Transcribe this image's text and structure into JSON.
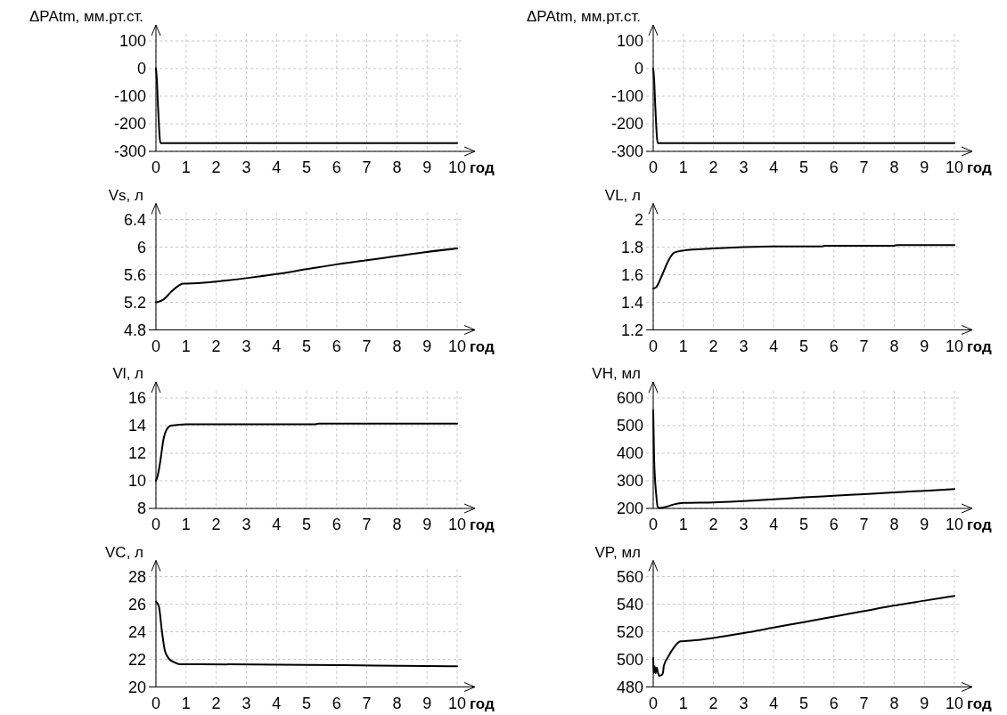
{
  "chart_data": [
    {
      "type": "line",
      "ylabel": "ΔPAtm, мм.рт.ст.",
      "xlabel": "год",
      "xlim": [
        0,
        10
      ],
      "xticks": [
        0,
        1,
        2,
        3,
        4,
        5,
        6,
        7,
        8,
        9,
        10
      ],
      "ylim": [
        -300,
        100
      ],
      "yticks": [
        -300,
        -200,
        -100,
        0,
        100
      ],
      "grid": true,
      "series": [
        {
          "color": "#000000",
          "x": [
            0,
            0.03,
            0.07,
            0.15,
            1,
            2,
            3,
            4,
            5,
            6,
            7,
            8,
            9,
            10
          ],
          "values": [
            0,
            -40,
            -140,
            -270,
            -270,
            -270,
            -270,
            -270,
            -270,
            -270,
            -270,
            -270,
            -270,
            -270
          ]
        }
      ]
    },
    {
      "type": "line",
      "ylabel": "ΔPAtm, мм.рт.ст.",
      "xlabel": "год",
      "xlim": [
        0,
        10
      ],
      "xticks": [
        0,
        1,
        2,
        3,
        4,
        5,
        6,
        7,
        8,
        9,
        10
      ],
      "ylim": [
        -300,
        100
      ],
      "yticks": [
        -300,
        -200,
        -100,
        0,
        100
      ],
      "grid": true,
      "series": [
        {
          "color": "#000000",
          "x": [
            0,
            0.03,
            0.07,
            0.15,
            1,
            2,
            3,
            4,
            5,
            6,
            7,
            8,
            9,
            10
          ],
          "values": [
            0,
            -40,
            -140,
            -270,
            -270,
            -270,
            -270,
            -270,
            -270,
            -270,
            -270,
            -270,
            -270,
            -270
          ]
        }
      ]
    },
    {
      "type": "line",
      "ylabel": "Vs, л",
      "xlabel": "год",
      "xlim": [
        0,
        10
      ],
      "xticks": [
        0,
        1,
        2,
        3,
        4,
        5,
        6,
        7,
        8,
        9,
        10
      ],
      "ylim": [
        4.8,
        6.4
      ],
      "yticks": [
        4.8,
        5.2,
        5.6,
        6,
        6.4
      ],
      "grid": true,
      "series": [
        {
          "color": "#000000",
          "x": [
            0,
            0.1,
            0.25,
            0.5,
            0.75,
            0.9,
            1.5,
            2,
            3,
            4,
            5,
            6,
            7,
            8,
            9,
            10
          ],
          "values": [
            5.2,
            5.21,
            5.24,
            5.35,
            5.44,
            5.47,
            5.48,
            5.5,
            5.55,
            5.61,
            5.68,
            5.75,
            5.81,
            5.87,
            5.93,
            5.98
          ]
        }
      ]
    },
    {
      "type": "line",
      "ylabel": "VL, л",
      "xlabel": "год",
      "xlim": [
        0,
        10
      ],
      "xticks": [
        0,
        1,
        2,
        3,
        4,
        5,
        6,
        7,
        8,
        9,
        10
      ],
      "ylim": [
        1.2,
        2
      ],
      "yticks": [
        1.2,
        1.4,
        1.6,
        1.8,
        2
      ],
      "grid": true,
      "series": [
        {
          "color": "#000000",
          "x": [
            0,
            0.1,
            0.3,
            0.5,
            0.7,
            1,
            2,
            3,
            4,
            5.6,
            5.7,
            8,
            8.1,
            10
          ],
          "values": [
            1.5,
            1.51,
            1.6,
            1.7,
            1.76,
            1.775,
            1.79,
            1.8,
            1.805,
            1.805,
            1.81,
            1.81,
            1.815,
            1.815
          ]
        }
      ]
    },
    {
      "type": "line",
      "ylabel": "Vl, л",
      "xlabel": "год",
      "xlim": [
        0,
        10
      ],
      "xticks": [
        0,
        1,
        2,
        3,
        4,
        5,
        6,
        7,
        8,
        9,
        10
      ],
      "ylim": [
        8,
        16
      ],
      "yticks": [
        8,
        10,
        12,
        14,
        16
      ],
      "grid": true,
      "series": [
        {
          "color": "#000000",
          "x": [
            0,
            0.05,
            0.15,
            0.25,
            0.35,
            0.5,
            0.7,
            1,
            5.3,
            5.4,
            10
          ],
          "values": [
            10,
            10.3,
            11.5,
            13,
            13.7,
            14,
            14.05,
            14.1,
            14.1,
            14.15,
            14.15
          ]
        }
      ]
    },
    {
      "type": "line",
      "ylabel": "VH, мл",
      "xlabel": "год",
      "xlim": [
        0,
        10
      ],
      "xticks": [
        0,
        1,
        2,
        3,
        4,
        5,
        6,
        7,
        8,
        9,
        10
      ],
      "ylim": [
        200,
        600
      ],
      "yticks": [
        200,
        300,
        400,
        500,
        600
      ],
      "grid": true,
      "series": [
        {
          "color": "#000000",
          "x": [
            0,
            0.03,
            0.1,
            0.15,
            0.2,
            0.4,
            0.7,
            1,
            2,
            3,
            4,
            5,
            6,
            7,
            8,
            9,
            10
          ],
          "values": [
            555,
            380,
            250,
            205,
            202,
            205,
            215,
            220,
            222,
            227,
            233,
            240,
            246,
            252,
            258,
            264,
            270
          ]
        }
      ]
    },
    {
      "type": "line",
      "ylabel": "VC, л",
      "xlabel": "год",
      "xlim": [
        0,
        10
      ],
      "xticks": [
        0,
        1,
        2,
        3,
        4,
        5,
        6,
        7,
        8,
        9,
        10
      ],
      "ylim": [
        20,
        28
      ],
      "yticks": [
        20,
        22,
        24,
        26,
        28
      ],
      "grid": true,
      "series": [
        {
          "color": "#000000",
          "x": [
            0,
            0.1,
            0.2,
            0.3,
            0.45,
            0.6,
            0.8,
            1,
            5,
            7.3,
            10
          ],
          "values": [
            26.2,
            25.8,
            24,
            22.6,
            22,
            21.8,
            21.65,
            21.65,
            21.6,
            21.55,
            21.5
          ]
        }
      ]
    },
    {
      "type": "line",
      "ylabel": "VP, мл",
      "xlabel": "год",
      "xlim": [
        0,
        10
      ],
      "xticks": [
        0,
        1,
        2,
        3,
        4,
        5,
        6,
        7,
        8,
        9,
        10
      ],
      "ylim": [
        480,
        560
      ],
      "yticks": [
        480,
        500,
        520,
        540,
        560
      ],
      "grid": true,
      "series": [
        {
          "color": "#000000",
          "x": [
            0,
            0.02,
            0.05,
            0.08,
            0.12,
            0.15,
            0.2,
            0.3,
            0.33,
            0.35,
            0.5,
            0.7,
            0.9,
            1.5,
            2,
            3,
            4,
            5,
            6,
            7,
            8,
            9,
            10
          ],
          "values": [
            501,
            490,
            495,
            490,
            494,
            491,
            488,
            489,
            491,
            495,
            502,
            509,
            513,
            514,
            515.5,
            519,
            523,
            527,
            531,
            535,
            539,
            542.5,
            546
          ]
        }
      ]
    }
  ]
}
